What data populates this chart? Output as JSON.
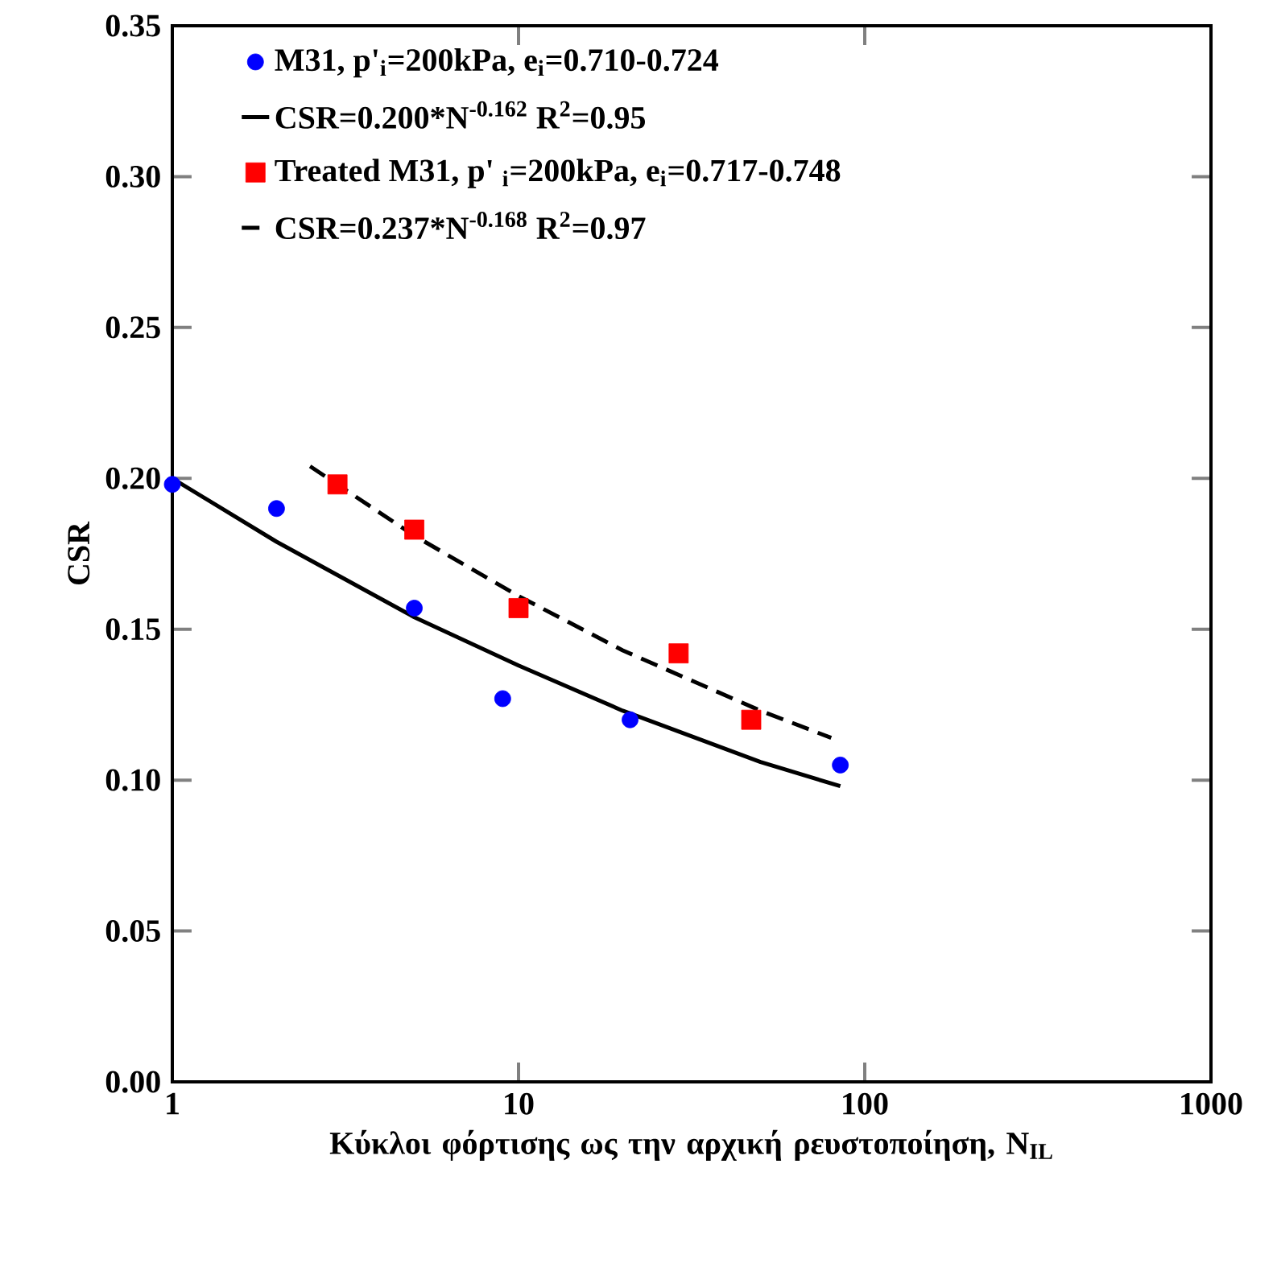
{
  "chart_data": {
    "type": "scatter",
    "xlabel": "Κύκλοι φόρτισης ως την αρχική ρευστοποίηση, N$_{IL}$",
    "ylabel": "CSR",
    "log": "x",
    "legend": "top left",
    "grid": false,
    "xlim": [
      1,
      1000
    ],
    "xticks": [
      1,
      10,
      100,
      1000
    ],
    "ylim": [
      0,
      0.35
    ],
    "yticks": [
      {
        "value": 0,
        "label": "0.00"
      },
      {
        "value": 0.05,
        "label": "0.05"
      },
      {
        "value": 0.1,
        "label": "0.10"
      },
      {
        "value": 0.15,
        "label": "0.15"
      },
      {
        "value": 0.2,
        "label": "0.20"
      },
      {
        "value": 0.25,
        "label": "0.25"
      },
      {
        "value": 0.3,
        "label": "0.30"
      },
      {
        "value": 0.35,
        "label": "0.35"
      }
    ],
    "series": [
      {
        "name": "M31, p'$_{i}$=200kPa, e$_{i}$=0.710-0.724",
        "type": "scatter",
        "marker": "circle",
        "color": "#0000ff",
        "x": [
          1,
          2,
          5,
          9,
          21,
          85
        ],
        "values": [
          0.198,
          0.19,
          0.157,
          0.127,
          0.12,
          0.105
        ]
      },
      {
        "name": "CSR=0.200*N$^{-0.162}$   R$^{2}$=0.95",
        "type": "line",
        "line_style": "solid",
        "color": "#000000",
        "x": [
          1,
          2,
          5,
          10,
          20,
          50,
          85
        ],
        "values": [
          0.2,
          0.179,
          0.154,
          0.138,
          0.123,
          0.106,
          0.098
        ]
      },
      {
        "name": "Treated M31, p' $_{i}$=200kPa, e$_{i}$=0.717-0.748",
        "type": "scatter",
        "marker": "square",
        "color": "#ff0000",
        "x": [
          3,
          5,
          10,
          29,
          47
        ],
        "values": [
          0.198,
          0.183,
          0.157,
          0.142,
          0.12
        ]
      },
      {
        "name": "CSR=0.237*N$^{-0.168}$   R$^{2}$=0.97",
        "type": "line",
        "line_style": "dashed",
        "color": "#000000",
        "x": [
          2.5,
          5,
          10,
          20,
          50,
          80
        ],
        "values": [
          0.204,
          0.181,
          0.161,
          0.143,
          0.123,
          0.114
        ]
      }
    ]
  }
}
